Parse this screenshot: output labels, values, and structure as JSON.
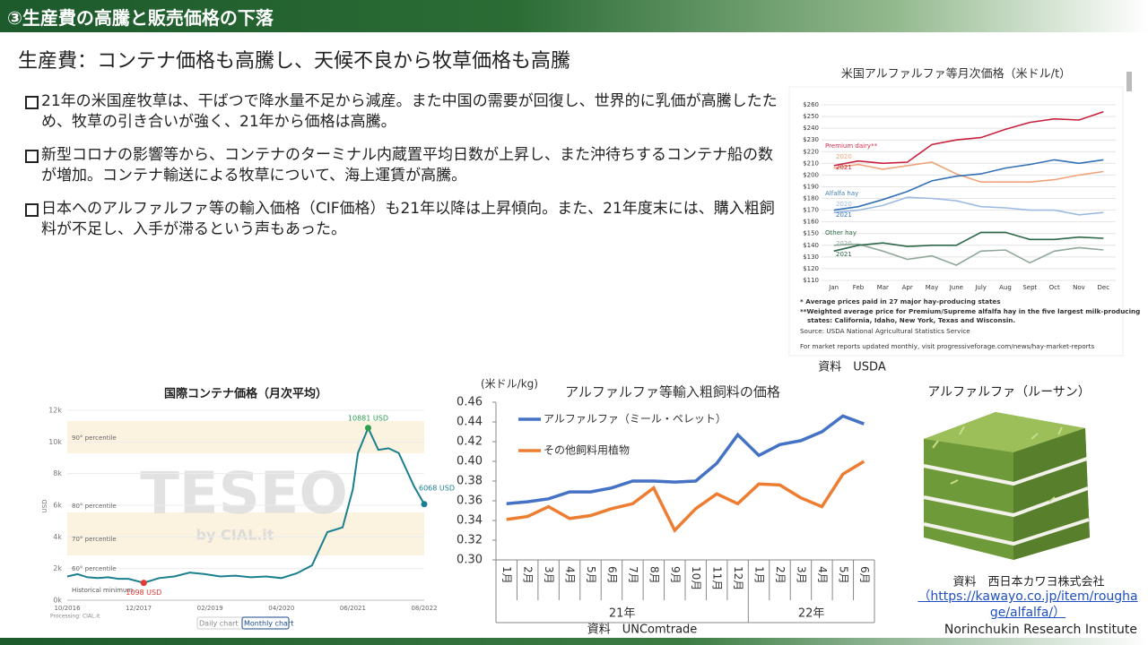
{
  "header": {
    "title": "③生産費の高騰と販売価格の下落",
    "subtitle": "生産費：コンテナ価格も高騰し、天候不良から牧草価格も高騰"
  },
  "bullets": [
    "21年の米国産牧草は、干ばつで降水量不足から減産。また中国の需要が回復し、世界的に乳価が高騰したため、牧草の引き合いが強く、21年から価格は高騰。",
    "新型コロナの影響等から、コンテナのターミナル内蔵置平均日数が上昇し、また沖待ちするコンテナ船の数が増加。コンテナ輸送による牧草について、海上運賃が高騰。",
    "日本へのアルファルファ等の輸入価格（CIF価格）も21年以降は上昇傾向。また、21年度末には、購入粗飼料が不足し、入手が滞るという声もあった。"
  ],
  "chart_data": [
    {
      "type": "line",
      "title": "国際コンテナ価格（月次平均）",
      "y_label": "USD",
      "color": "#1a7f8e",
      "x": [
        "10/2016",
        "12/2016",
        "02/2017",
        "04/2017",
        "06/2017",
        "08/2017",
        "10/2017",
        "01/2018",
        "04/2018",
        "07/2018",
        "10/2018",
        "01/2019",
        "04/2019",
        "07/2019",
        "10/2019",
        "01/2020",
        "04/2020",
        "07/2020",
        "10/2020",
        "01/2021",
        "04/2021",
        "06/2021",
        "07/2021",
        "09/2021",
        "11/2021",
        "01/2022",
        "03/2022",
        "06/2022",
        "08/2022"
      ],
      "values": [
        1500,
        1650,
        1450,
        1400,
        1450,
        1350,
        1350,
        1098,
        1400,
        1500,
        1750,
        1650,
        1500,
        1550,
        1450,
        1500,
        1400,
        1700,
        2200,
        4300,
        4600,
        7000,
        9300,
        10881,
        9500,
        9600,
        9300,
        7200,
        6068
      ],
      "xlim": [
        "10/2016",
        "08/2022"
      ],
      "xticks": [
        "10/2016",
        "12/2017",
        "02/2019",
        "04/2020",
        "06/2021",
        "08/2022"
      ],
      "ylim": [
        0,
        12000
      ],
      "yticks": [
        {
          "value": 0,
          "label": "0k"
        },
        {
          "value": 2000,
          "label": "2k"
        },
        {
          "value": 4000,
          "label": "4k"
        },
        {
          "value": 6000,
          "label": "6k"
        },
        {
          "value": 8000,
          "label": "8k"
        },
        {
          "value": 10000,
          "label": "10k"
        },
        {
          "value": 12000,
          "label": "12k"
        }
      ],
      "annotations": [
        {
          "x": "09/2021",
          "value": 10881,
          "label": "10881 USD",
          "color": "#2e9e4f"
        },
        {
          "x": "01/2018",
          "value": 1098,
          "label": "1098 USD",
          "color": "#e53935"
        },
        {
          "x": "08/2022",
          "value": 6068,
          "label": "6068 USD",
          "color": "#1a7f8e"
        }
      ],
      "percentile_labels": [
        "90° percentile",
        "80° percentile",
        "70° percentile",
        "60° percentile"
      ],
      "minimum_label": "Historical minimum",
      "credit": "Processing: CIAL.it",
      "watermark": "TESEO",
      "watermark_sub": "by CIAL.it",
      "buttons": [
        "Daily chart",
        "Monthly chart"
      ]
    },
    {
      "type": "line",
      "title": "アルファルファ等輸入粗飼料の価格",
      "y_label": "(米ドル/kg)",
      "category_groups": [
        {
          "label": "21年",
          "categories": [
            "1月",
            "2月",
            "3月",
            "4月",
            "5月",
            "6月",
            "7月",
            "8月",
            "9月",
            "10月",
            "11月",
            "12月"
          ]
        },
        {
          "label": "22年",
          "categories": [
            "1月",
            "2月",
            "3月",
            "4月",
            "5月",
            "6月"
          ]
        }
      ],
      "ylim": [
        0.3,
        0.46
      ],
      "yticks": [
        {
          "value": 0.3,
          "label": "0.30"
        },
        0.32,
        0.34,
        0.36,
        0.38,
        {
          "value": 0.4,
          "label": "0.40"
        },
        0.42,
        0.44,
        0.46
      ],
      "series": [
        {
          "name": "アルファルファ（ミール・ペレット）",
          "color": "#4472c4",
          "values": [
            0.357,
            0.359,
            0.362,
            0.369,
            0.369,
            0.373,
            0.38,
            0.38,
            0.379,
            0.38,
            0.398,
            0.427,
            0.406,
            0.417,
            0.421,
            0.43,
            0.446,
            0.438
          ]
        },
        {
          "name": "その他飼料用植物",
          "color": "#ed7d31",
          "values": [
            0.341,
            0.344,
            0.354,
            0.342,
            0.345,
            0.352,
            0.357,
            0.373,
            0.33,
            0.352,
            0.367,
            0.357,
            0.377,
            0.376,
            0.363,
            0.354,
            0.387,
            0.4
          ]
        }
      ],
      "source": "資料　UNComtrade"
    },
    {
      "type": "line",
      "title": "米国アルファルファ等月次価格（米ドル/t）",
      "categories": [
        "Jan",
        "Feb",
        "Mar",
        "Apr",
        "May",
        "June",
        "July",
        "Aug",
        "Sept",
        "Oct",
        "Nov",
        "Dec"
      ],
      "ylim": [
        110,
        260
      ],
      "yticks": [
        {
          "value": 110,
          "label": "$110"
        },
        {
          "value": 120,
          "label": "$120"
        },
        {
          "value": 130,
          "label": "$130"
        },
        {
          "value": 140,
          "label": "$140"
        },
        {
          "value": 150,
          "label": "$150"
        },
        {
          "value": 160,
          "label": "$160"
        },
        {
          "value": 170,
          "label": "$170"
        },
        {
          "value": 180,
          "label": "$180"
        },
        {
          "value": 190,
          "label": "$190"
        },
        {
          "value": 200,
          "label": "$200"
        },
        {
          "value": 210,
          "label": "$210"
        },
        {
          "value": 220,
          "label": "$220"
        },
        {
          "value": 230,
          "label": "$230"
        },
        {
          "value": 240,
          "label": "$240"
        },
        {
          "value": 250,
          "label": "$250"
        },
        {
          "value": 260,
          "label": "$260"
        }
      ],
      "grid": true,
      "groups": [
        {
          "name": "Premium dairy**",
          "color": "#d62b4b",
          "series": [
            {
              "name": "2020",
              "color": "#f0a37a",
              "values": [
                206,
                209,
                205,
                208,
                211,
                201,
                194,
                194,
                194,
                196,
                200,
                203
              ]
            },
            {
              "name": "2021",
              "color": "#c8223f",
              "values": [
                208,
                212,
                210,
                211,
                226,
                230,
                232,
                239,
                245,
                248,
                247,
                254
              ]
            }
          ]
        },
        {
          "name": "Alfalfa hay",
          "color": "#3f7fc0",
          "series": [
            {
              "name": "2020",
              "color": "#9dbbe0",
              "values": [
                168,
                170,
                174,
                181,
                180,
                178,
                173,
                172,
                170,
                170,
                166,
                168
              ]
            },
            {
              "name": "2021",
              "color": "#3470b5",
              "values": [
                170,
                173,
                179,
                186,
                195,
                199,
                201,
                206,
                209,
                213,
                210,
                213
              ]
            }
          ]
        },
        {
          "name": "Other hay",
          "color": "#2e6b45",
          "series": [
            {
              "name": "2020",
              "color": "#8fa89a",
              "values": [
                140,
                141,
                135,
                128,
                131,
                123,
                135,
                136,
                125,
                135,
                138,
                136
              ]
            },
            {
              "name": "2021",
              "color": "#2c6645",
              "values": [
                135,
                140,
                142,
                139,
                140,
                140,
                151,
                151,
                145,
                145,
                147,
                146
              ]
            }
          ]
        }
      ],
      "notes": [
        "* Average prices paid in 27 major hay-producing states",
        "**Weighted average price for Premium/Supreme alfalfa hay in the five largest milk-producing",
        "states: California, Idaho, New York, Texas and Wisconsin.",
        "Source: USDA National Agricultural Statistics Service",
        "For market reports updated monthly, visit progressiveforage.com/news/hay-market-reports"
      ],
      "source": "資料　USDA"
    }
  ],
  "photo": {
    "title": "アルファルファ（ルーサン）",
    "source": "資料　西日本カワヨ株式会社",
    "url": "（https://kawayo.co.jp/item/roughage/alfalfa/）"
  },
  "footer": "Norinchukin Research Institute"
}
